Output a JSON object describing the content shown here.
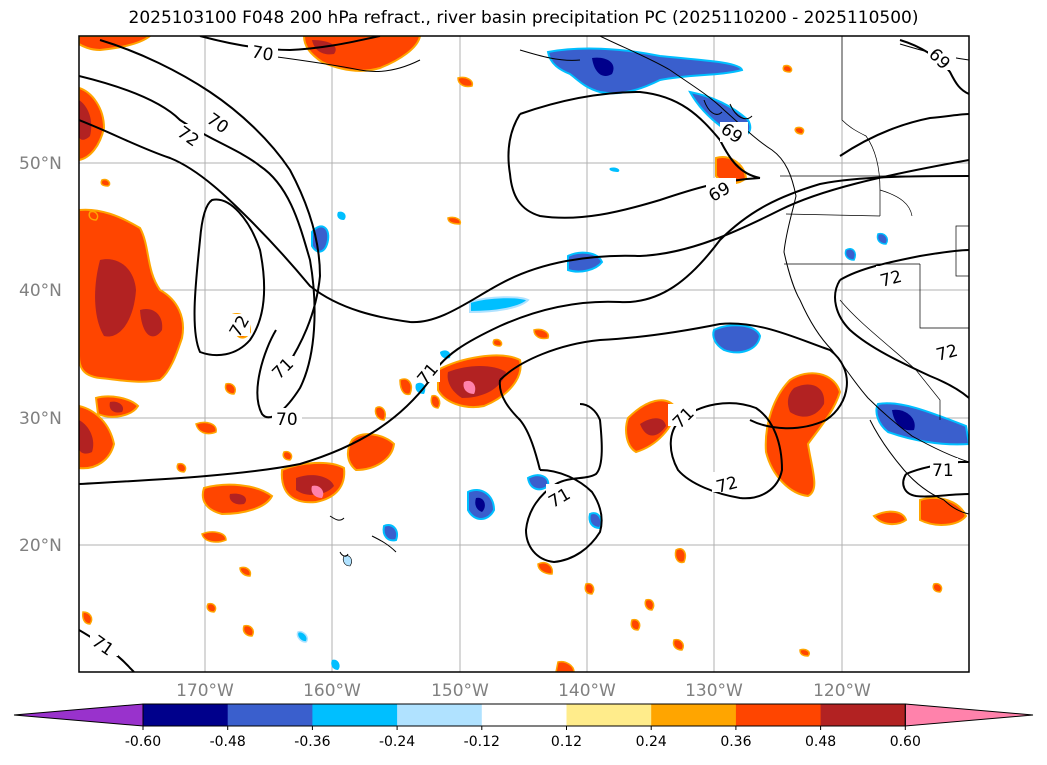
{
  "title": "2025103100 F048 200 hPa refract., river basin precipitation PC (2025110200 - 2025110500)",
  "map": {
    "lat_labels": [
      "50°N",
      "40°N",
      "30°N",
      "20°N"
    ],
    "lon_labels": [
      "170°W",
      "160°W",
      "150°W",
      "140°W",
      "130°W",
      "120°W"
    ],
    "contour_labels": [
      "70",
      "72",
      "70",
      "69",
      "69",
      "72",
      "72",
      "71",
      "70",
      "71",
      "71",
      "72",
      "71",
      "71",
      "71",
      "69",
      "72"
    ]
  },
  "colorbar": {
    "ticks": [
      "-0.60",
      "-0.48",
      "-0.36",
      "-0.24",
      "-0.12",
      "0.12",
      "0.24",
      "0.36",
      "0.48",
      "0.60"
    ],
    "colors": [
      "#9932cc",
      "#00008b",
      "#3a5fcd",
      "#00bfff",
      "#b0e2ff",
      "#ffffff",
      "#ffec8b",
      "#ffa500",
      "#ff4500",
      "#b22222",
      "#ff82ab"
    ]
  }
}
